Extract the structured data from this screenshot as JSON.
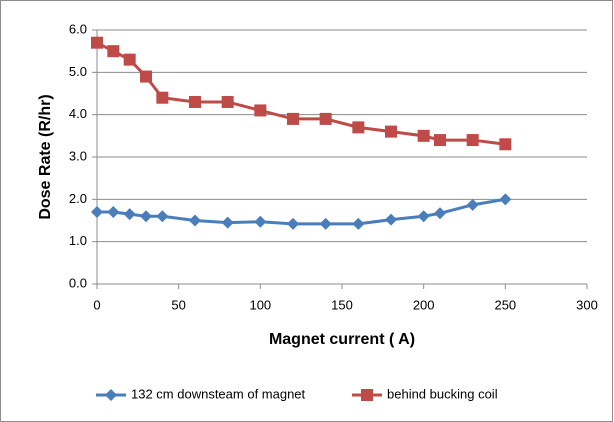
{
  "chart_data": {
    "type": "line",
    "x_label": "Magnet current ( A)",
    "y_label": "Dose Rate (R/hr)",
    "x": [
      0,
      10,
      20,
      30,
      40,
      60,
      80,
      100,
      120,
      140,
      160,
      180,
      200,
      210,
      230,
      250
    ],
    "series": [
      {
        "name": "132 cm downsteam of magnet",
        "color": "#4a7ebb",
        "marker": "diamond",
        "values": [
          1.7,
          1.7,
          1.65,
          1.6,
          1.6,
          1.5,
          1.45,
          1.47,
          1.42,
          1.42,
          1.42,
          1.52,
          1.6,
          1.67,
          1.87,
          2.0
        ]
      },
      {
        "name": "behind bucking coil",
        "color": "#be4b48",
        "marker": "square",
        "values": [
          5.7,
          5.5,
          5.3,
          4.9,
          4.4,
          4.3,
          4.3,
          4.1,
          3.9,
          3.9,
          3.7,
          3.6,
          3.5,
          3.4,
          3.4,
          3.3
        ]
      }
    ],
    "xlim": [
      0,
      300
    ],
    "xticks": [
      0,
      50,
      100,
      150,
      200,
      250,
      300
    ],
    "ylim": [
      0,
      6
    ],
    "yticks": [
      {
        "value": 0,
        "label": "0.0"
      },
      {
        "value": 1,
        "label": "1.0"
      },
      {
        "value": 2,
        "label": "2.0"
      },
      {
        "value": 3,
        "label": "3.0"
      },
      {
        "value": 4,
        "label": "4.0"
      },
      {
        "value": 5,
        "label": "5.0"
      },
      {
        "value": 6,
        "label": "6.0"
      }
    ],
    "grid": true,
    "legend": "bottom"
  }
}
